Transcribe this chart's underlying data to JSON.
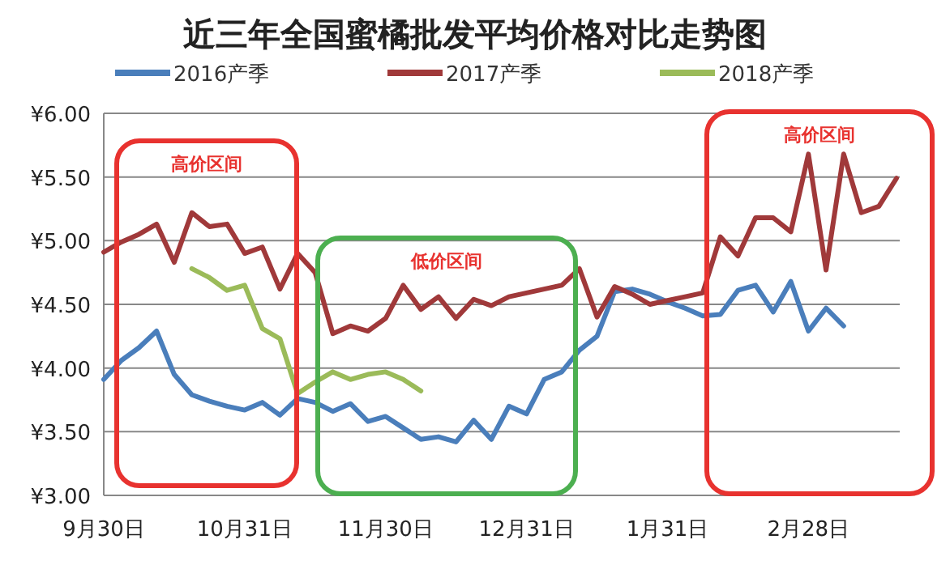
{
  "chart_data": {
    "type": "line",
    "title": "近三年全国蜜橘批发平均价格对比走势图",
    "categories": [
      "9月30日",
      null,
      null,
      null,
      null,
      null,
      null,
      null,
      "10月31日",
      null,
      null,
      null,
      null,
      null,
      null,
      null,
      "11月30日",
      null,
      null,
      null,
      null,
      null,
      null,
      null,
      "12月31日",
      null,
      null,
      null,
      null,
      null,
      null,
      null,
      "1月31日",
      null,
      null,
      null,
      null,
      null,
      null,
      null,
      "2月28日",
      null,
      null,
      null,
      null,
      null
    ],
    "series": [
      {
        "name": "2016产季",
        "color": "#4a7ebb",
        "values": [
          3.91,
          4.06,
          4.16,
          4.29,
          3.95,
          3.79,
          3.74,
          3.7,
          3.67,
          3.73,
          3.63,
          3.76,
          3.73,
          3.66,
          3.72,
          3.58,
          3.62,
          3.53,
          3.44,
          3.46,
          3.42,
          3.59,
          3.44,
          3.7,
          3.64,
          3.91,
          3.97,
          4.14,
          4.25,
          4.6,
          4.62,
          4.58,
          4.52,
          4.47,
          4.41,
          4.42,
          4.61,
          4.65,
          4.44,
          4.68,
          4.29,
          4.47,
          4.33,
          null,
          null,
          null
        ]
      },
      {
        "name": "2017产季",
        "color": "#a0393a",
        "values": [
          4.91,
          4.99,
          5.05,
          5.13,
          4.83,
          5.22,
          5.11,
          5.13,
          4.9,
          4.95,
          4.62,
          4.9,
          4.75,
          4.27,
          4.33,
          4.29,
          4.39,
          4.65,
          4.46,
          4.56,
          4.39,
          4.54,
          4.49,
          4.56,
          4.59,
          4.62,
          4.65,
          4.78,
          4.4,
          4.64,
          4.58,
          4.5,
          4.53,
          4.56,
          4.59,
          5.03,
          4.88,
          5.18,
          5.18,
          5.07,
          5.68,
          4.77,
          5.68,
          5.22,
          5.27,
          5.49
        ]
      },
      {
        "name": "2018产季",
        "color": "#9bbb59",
        "values": [
          null,
          null,
          null,
          null,
          null,
          4.78,
          4.71,
          4.61,
          4.65,
          4.31,
          4.23,
          3.8,
          3.89,
          3.97,
          3.91,
          3.95,
          3.97,
          3.91,
          3.82,
          null,
          null,
          null,
          null,
          null,
          null,
          null,
          null,
          null,
          null,
          null,
          null,
          null,
          null,
          null,
          null,
          null,
          null,
          null,
          null,
          null,
          null,
          null,
          null,
          null,
          null,
          null
        ]
      }
    ],
    "ylim": [
      3,
      6
    ],
    "yticks": [
      {
        "value": 3,
        "label": "¥3.00"
      },
      {
        "value": 3.5,
        "label": "¥3.50"
      },
      {
        "value": 4,
        "label": "¥4.00"
      },
      {
        "value": 4.5,
        "label": "¥4.50"
      },
      {
        "value": 5,
        "label": "¥5.00"
      },
      {
        "value": 5.5,
        "label": "¥5.50"
      },
      {
        "value": 6,
        "label": "¥6.00"
      }
    ],
    "grid": "y",
    "legend": "top",
    "marker": "none",
    "line_style": "solid",
    "annotations": [
      "高价区间",
      "低价区间",
      "高价区间"
    ]
  }
}
